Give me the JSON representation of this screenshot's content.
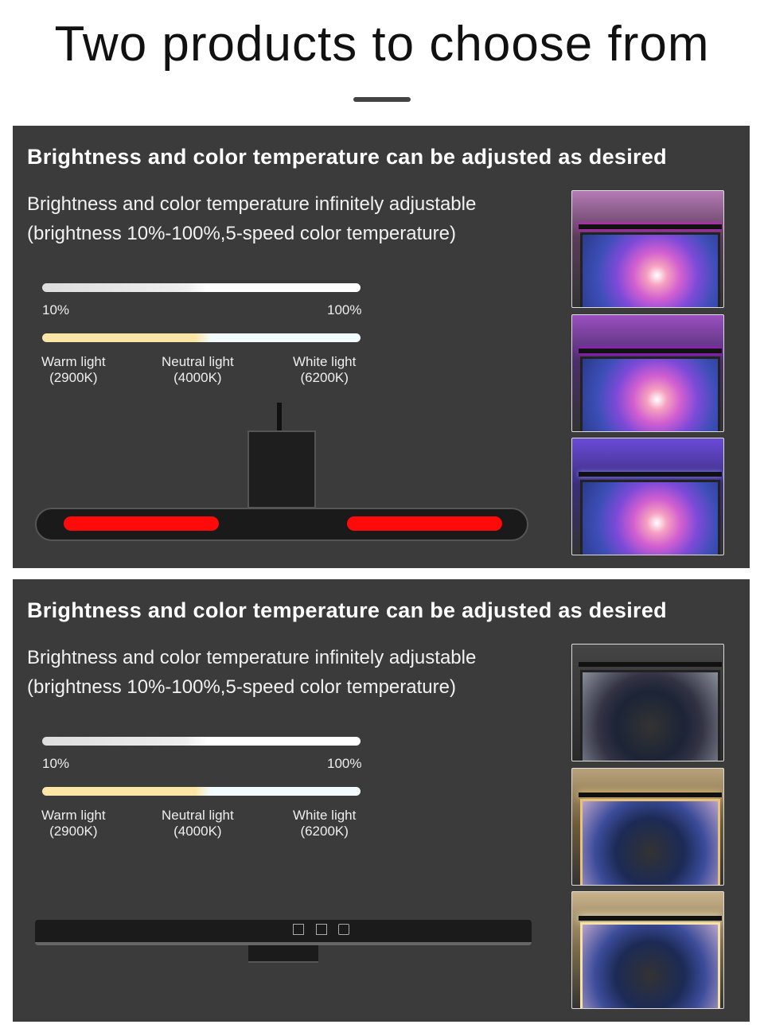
{
  "page": {
    "title": "Two products to choose from"
  },
  "panels": [
    {
      "heading": "Brightness and color temperature can be adjusted as desired",
      "desc_line1": "Brightness and color temperature infinitely adjustable",
      "desc_line2": "(brightness 10%-100%,5-speed color temperature)",
      "brightness_min": "10%",
      "brightness_max": "100%",
      "temps": [
        {
          "name": "Warm light",
          "k": "(2900K)"
        },
        {
          "name": "Neutral light",
          "k": "(4000K)"
        },
        {
          "name": "White light",
          "k": "(6200K)"
        }
      ],
      "accent_color": "#ff0000"
    },
    {
      "heading": "Brightness and color temperature can be adjusted as desired",
      "desc_line1": "Brightness and color temperature infinitely adjustable",
      "desc_line2": "(brightness 10%-100%,5-speed color temperature)",
      "brightness_min": "10%",
      "brightness_max": "100%",
      "temps": [
        {
          "name": "Warm light",
          "k": "(2900K)"
        },
        {
          "name": "Neutral light",
          "k": "(4000K)"
        },
        {
          "name": "White light",
          "k": "(6200K)"
        }
      ]
    }
  ]
}
